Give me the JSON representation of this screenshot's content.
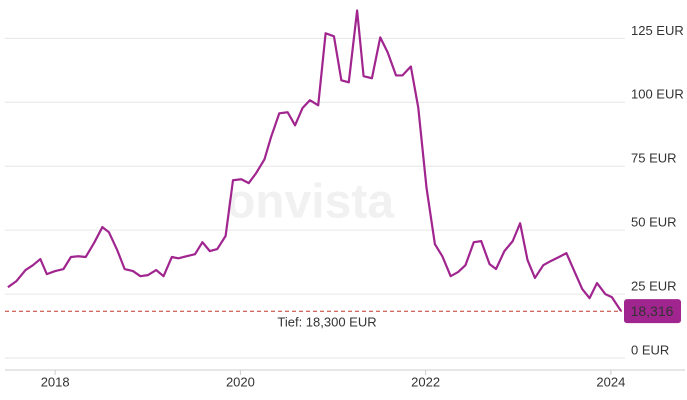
{
  "chart_data": {
    "type": "line",
    "watermark": "onvista",
    "color": "#a0258f",
    "x": [
      2017.49,
      2017.58,
      2017.68,
      2017.76,
      2017.84,
      2017.91,
      2018.0,
      2018.09,
      2018.17,
      2018.25,
      2018.33,
      2018.42,
      2018.51,
      2018.58,
      2018.67,
      2018.75,
      2018.84,
      2018.92,
      2019.0,
      2019.09,
      2019.17,
      2019.26,
      2019.33,
      2019.42,
      2019.51,
      2019.59,
      2019.67,
      2019.75,
      2019.84,
      2019.92,
      2020.01,
      2020.09,
      2020.17,
      2020.26,
      2020.33,
      2020.42,
      2020.51,
      2020.59,
      2020.67,
      2020.75,
      2020.84,
      2020.92,
      2021.01,
      2021.09,
      2021.17,
      2021.26,
      2021.33,
      2021.42,
      2021.51,
      2021.59,
      2021.68,
      2021.75,
      2021.84,
      2021.92,
      2022.01,
      2022.1,
      2022.18,
      2022.27,
      2022.35,
      2022.43,
      2022.52,
      2022.6,
      2022.69,
      2022.76,
      2022.85,
      2022.94,
      2023.02,
      2023.1,
      2023.18,
      2023.27,
      2023.35,
      2023.44,
      2023.52,
      2023.6,
      2023.69,
      2023.77,
      2023.85,
      2023.94,
      2024.01,
      2024.11
    ],
    "values": [
      27.7,
      30,
      34.4,
      36.3,
      38.7,
      32.8,
      34,
      34.8,
      39.5,
      39.8,
      39.5,
      45,
      51.2,
      49.2,
      42.2,
      34.8,
      34,
      32,
      32.4,
      34.4,
      32,
      39.5,
      39,
      39.8,
      40.6,
      45.3,
      41.8,
      42.6,
      47.7,
      69.5,
      69.9,
      68.4,
      72.3,
      77.7,
      86.3,
      95.7,
      96.1,
      91,
      97.7,
      100.8,
      98.8,
      127,
      125.8,
      108.6,
      107.8,
      135.9,
      110.2,
      109.4,
      125.4,
      119.5,
      110.5,
      110.5,
      114,
      98,
      66.4,
      44.5,
      39.8,
      32,
      33.6,
      36.3,
      45.3,
      45.7,
      36.7,
      34.8,
      41.8,
      45.7,
      52.7,
      38.3,
      31.3,
      36.3,
      37.9,
      39.5,
      41,
      34.4,
      27,
      23.4,
      29.3,
      25,
      23.8,
      18.316
    ],
    "current": {
      "value": 18.316,
      "label": "18,316"
    },
    "low": {
      "value": 18.3,
      "label": "Tief: 18,300 EUR"
    },
    "low_color": "#c0392b",
    "xlim": [
      2017.48,
      2024.12
    ],
    "xticks": [
      2018,
      2020,
      2022,
      2024
    ],
    "ylim": [
      0,
      140
    ],
    "yticks": [
      {
        "value": 0,
        "label": "0 EUR"
      },
      {
        "value": 25,
        "label": "25 EUR"
      },
      {
        "value": 50,
        "label": "50 EUR"
      },
      {
        "value": 75,
        "label": "75 EUR"
      },
      {
        "value": 100,
        "label": "100 EUR"
      },
      {
        "value": 125,
        "label": "125 EUR"
      }
    ],
    "grid": true
  }
}
